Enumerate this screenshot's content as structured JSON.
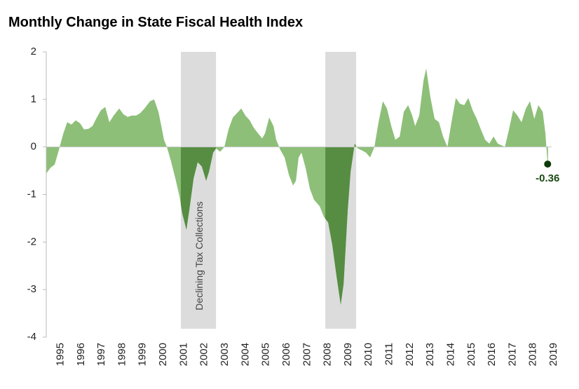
{
  "chart_data": {
    "type": "area",
    "title": "Monthly Change in State Fiscal Health Index",
    "x": [
      1994.8,
      1995.0,
      1995.21,
      1995.41,
      1995.62,
      1995.82,
      1996.03,
      1996.23,
      1996.44,
      1996.64,
      1996.85,
      1997.05,
      1997.26,
      1997.46,
      1997.67,
      1997.87,
      1998.08,
      1998.35,
      1998.55,
      1998.76,
      1998.96,
      1999.17,
      1999.37,
      1999.58,
      1999.85,
      2000.05,
      2000.26,
      2000.4,
      2000.53,
      2000.67,
      2000.87,
      2001.08,
      2001.28,
      2001.42,
      2001.62,
      2001.76,
      2001.97,
      2002.17,
      2002.37,
      2002.58,
      2002.72,
      2002.92,
      2003.06,
      2003.26,
      2003.47,
      2003.67,
      2003.88,
      2004.08,
      2004.29,
      2004.49,
      2004.7,
      2004.9,
      2005.1,
      2005.31,
      2005.45,
      2005.65,
      2005.86,
      2005.99,
      2006.2,
      2006.4,
      2006.61,
      2006.81,
      2006.95,
      2007.08,
      2007.22,
      2007.42,
      2007.63,
      2007.83,
      2008.11,
      2008.31,
      2008.52,
      2008.72,
      2008.93,
      2009.13,
      2009.27,
      2009.47,
      2009.61,
      2009.81,
      2009.95,
      2010.15,
      2010.36,
      2010.56,
      2010.77,
      2010.97,
      2011.18,
      2011.38,
      2011.59,
      2011.79,
      2012.0,
      2012.2,
      2012.41,
      2012.61,
      2012.75,
      2012.95,
      2013.16,
      2013.29,
      2013.5,
      2013.7,
      2013.91,
      2014.11,
      2014.32,
      2014.52,
      2014.73,
      2014.93,
      2015.14,
      2015.34,
      2015.55,
      2015.75,
      2015.95,
      2016.16,
      2016.36,
      2016.57,
      2016.77,
      2016.98,
      2017.12,
      2017.32,
      2017.52,
      2017.73,
      2017.93,
      2018.14,
      2018.34,
      2018.55,
      2018.75,
      2018.96,
      2019.09,
      2019.2
    ],
    "values": [
      -0.56,
      -0.44,
      -0.37,
      -0.07,
      0.27,
      0.52,
      0.47,
      0.56,
      0.5,
      0.37,
      0.38,
      0.44,
      0.62,
      0.77,
      0.84,
      0.52,
      0.66,
      0.81,
      0.69,
      0.63,
      0.66,
      0.66,
      0.71,
      0.81,
      0.96,
      1.0,
      0.74,
      0.44,
      0.15,
      0,
      -0.3,
      -0.66,
      -1.03,
      -1.4,
      -1.74,
      -1.33,
      -0.66,
      -0.32,
      -0.41,
      -0.71,
      -0.52,
      -0.12,
      -0.03,
      -0.1,
      0,
      0.37,
      0.62,
      0.71,
      0.81,
      0.66,
      0.56,
      0.4,
      0.29,
      0.18,
      0.29,
      0.62,
      0.44,
      0.15,
      -0.07,
      -0.22,
      -0.59,
      -0.81,
      -0.71,
      -0.22,
      -0.12,
      -0.44,
      -0.88,
      -1.11,
      -1.25,
      -1.47,
      -1.59,
      -2.06,
      -2.73,
      -3.32,
      -2.88,
      -1.33,
      -0.52,
      0.07,
      -0.03,
      -0.07,
      -0.12,
      -0.22,
      0,
      0.52,
      0.96,
      0.81,
      0.44,
      0.15,
      0.22,
      0.74,
      0.88,
      0.66,
      0.44,
      0.66,
      1.4,
      1.65,
      1.03,
      0.59,
      0.52,
      0.22,
      0,
      0.52,
      1.03,
      0.91,
      0.88,
      1.03,
      0.77,
      0.59,
      0.37,
      0.15,
      0.07,
      0.22,
      0.07,
      0.03,
      0,
      0.37,
      0.77,
      0.66,
      0.52,
      0.81,
      0.96,
      0.59,
      0.88,
      0.74,
      0.29,
      -0.36
    ],
    "color": "#8dbf78",
    "highlight_color": "#568d42",
    "band_color": "#dcdcdc",
    "bands": [
      {
        "x": [
          2001.35,
          2003.06
        ],
        "label": "Declining Tax Collections"
      },
      {
        "x": [
          2008.38,
          2009.88
        ]
      }
    ],
    "xlim": [
      1994.8,
      2019.6
    ],
    "ylim": [
      -4,
      2
    ],
    "yticks": [
      -4,
      -3,
      -2,
      -1,
      0,
      1,
      2
    ],
    "xticks": [
      {
        "value": 1995.5,
        "label": "1995"
      },
      {
        "value": 1996.5,
        "label": "1996"
      },
      {
        "value": 1997.5,
        "label": "1997"
      },
      {
        "value": 1998.5,
        "label": "1998"
      },
      {
        "value": 1999.5,
        "label": "1999"
      },
      {
        "value": 2000.5,
        "label": "2000"
      },
      {
        "value": 2001.5,
        "label": "2001"
      },
      {
        "value": 2002.5,
        "label": "2002"
      },
      {
        "value": 2003.5,
        "label": "2003"
      },
      {
        "value": 2004.5,
        "label": "2004"
      },
      {
        "value": 2005.5,
        "label": "2005"
      },
      {
        "value": 2006.5,
        "label": "2006"
      },
      {
        "value": 2007.5,
        "label": "2007"
      },
      {
        "value": 2008.5,
        "label": "2008"
      },
      {
        "value": 2009.5,
        "label": "2009"
      },
      {
        "value": 2010.5,
        "label": "2010"
      },
      {
        "value": 2011.5,
        "label": "2011"
      },
      {
        "value": 2012.5,
        "label": "2012"
      },
      {
        "value": 2013.5,
        "label": "2013"
      },
      {
        "value": 2014.5,
        "label": "2014"
      },
      {
        "value": 2015.5,
        "label": "2015"
      },
      {
        "value": 2016.5,
        "label": "2016"
      },
      {
        "value": 2017.5,
        "label": "2017"
      },
      {
        "value": 2018.5,
        "label": "2018"
      },
      {
        "value": 2019.5,
        "label": "2019"
      }
    ]
  }
}
